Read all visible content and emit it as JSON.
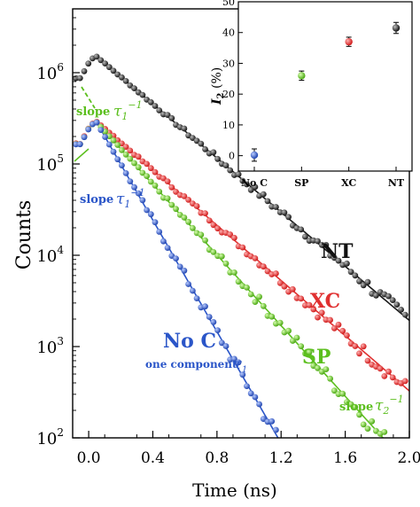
{
  "chart_data": [
    {
      "type": "scatter",
      "scale": "log-y",
      "xlabel": "Time (ns)",
      "ylabel": "Counts",
      "xlim": [
        -0.1,
        2.0
      ],
      "ylim": [
        100,
        5000000
      ],
      "x_ticks": [
        "0.0",
        "0.4",
        "0.8",
        "1.2",
        "1.6",
        "2.0"
      ],
      "x_tick_values": [
        0.0,
        0.4,
        0.8,
        1.2,
        1.6,
        2.0
      ],
      "y_ticks": [
        "2",
        "3",
        "4",
        "5",
        "6"
      ],
      "y_tick_values": [
        100,
        1000,
        10000,
        100000,
        1000000
      ],
      "grid": false,
      "series": [
        {
          "name": "NT",
          "color": "#1a1a1a",
          "peak_x": 0.05,
          "peak_y": 1500000,
          "end_y": 2000,
          "x_end": 1.99,
          "spacing": 0.026
        },
        {
          "name": "XC",
          "color": "#e03030",
          "peak_x": 0.05,
          "peak_y": 290000,
          "end_y": 350,
          "x_end": 1.98,
          "spacing": 0.026
        },
        {
          "name": "SP",
          "color": "#5cbf1e",
          "peak_x": 0.05,
          "peak_y": 285000,
          "end_y": 75,
          "x_end": 1.9,
          "spacing": 0.026
        },
        {
          "name": "No C",
          "color": "#2a55c8",
          "peak_x": 0.05,
          "peak_y": 285000,
          "end_y": 35,
          "x_end": 1.33,
          "spacing": 0.026
        }
      ],
      "labels": {
        "nt": "NT",
        "xc": "XC",
        "sp": "SP",
        "noc": "No C",
        "one_component": "one component",
        "slope": "slope"
      }
    },
    {
      "type": "scatter",
      "inset": true,
      "ylabel": "I",
      "ylabel_sub": "2",
      "ylabel_unit": " (%)",
      "ylim": [
        -5,
        50
      ],
      "y_ticks": [
        "0",
        "10",
        "20",
        "30",
        "40",
        "50"
      ],
      "y_tick_values": [
        0,
        10,
        20,
        30,
        40,
        50
      ],
      "categories": [
        "No C",
        "SP",
        "XC",
        "NT"
      ],
      "values": [
        0.2,
        26,
        37,
        41.5
      ],
      "errors": [
        2.0,
        1.5,
        1.5,
        1.8
      ],
      "colors": [
        "#2a55c8",
        "#5cbf1e",
        "#e03030",
        "#1a1a1a"
      ]
    }
  ]
}
